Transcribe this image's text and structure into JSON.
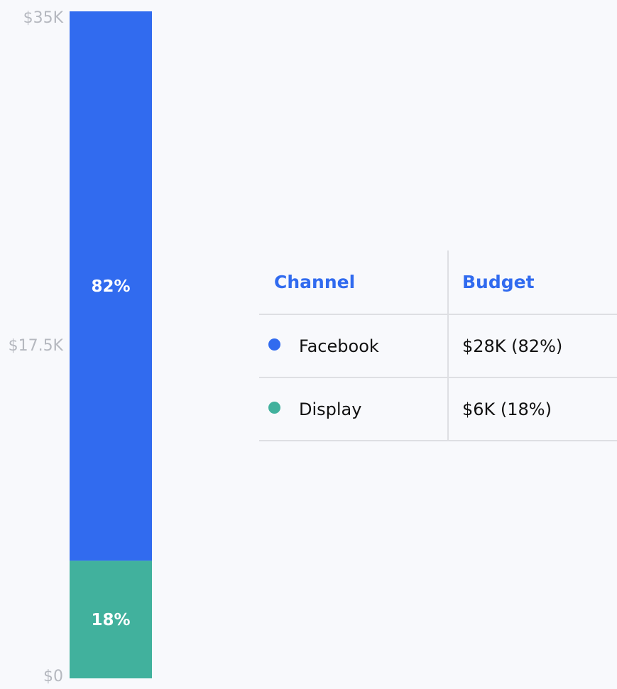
{
  "chart_data": {
    "type": "bar",
    "stacked": true,
    "categories": [
      ""
    ],
    "series": [
      {
        "name": "Display",
        "values": [
          6
        ],
        "percent_label": "18%",
        "color": "#41b19d"
      },
      {
        "name": "Facebook",
        "values": [
          28
        ],
        "percent_label": "82%",
        "color": "#316bef"
      }
    ],
    "units": "$K",
    "ylim": [
      0,
      35
    ],
    "yticks": [
      {
        "value": 0,
        "label": "$0"
      },
      {
        "value": 17.5,
        "label": "$17.5K"
      },
      {
        "value": 35,
        "label": "$35K"
      }
    ],
    "grid": false
  },
  "table": {
    "headers": {
      "channel": "Channel",
      "budget": "Budget"
    },
    "rows": [
      {
        "channel": "Facebook",
        "budget": "$28K  (82%)",
        "color": "#316bef"
      },
      {
        "channel": "Display",
        "budget": "$6K  (18%)",
        "color": "#41b19d"
      }
    ]
  }
}
